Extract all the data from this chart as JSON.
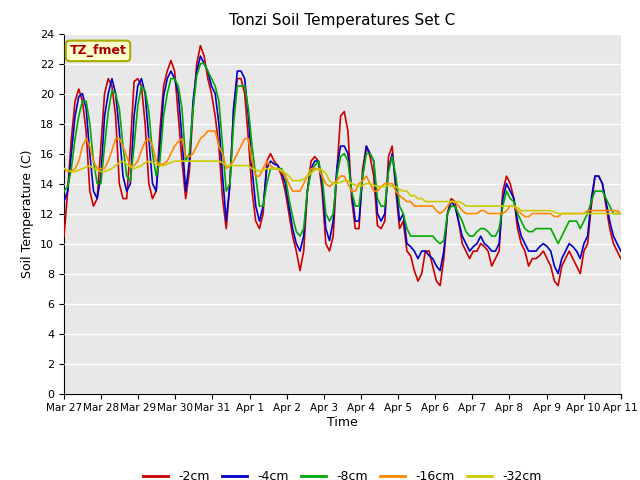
{
  "title": "Tonzi Soil Temperatures Set C",
  "xlabel": "Time",
  "ylabel": "Soil Temperature (C)",
  "ylim": [
    0,
    24
  ],
  "yticks": [
    0,
    2,
    4,
    6,
    8,
    10,
    12,
    14,
    16,
    18,
    20,
    22,
    24
  ],
  "xtick_labels": [
    "Mar 27",
    "Mar 28",
    "Mar 29",
    "Mar 30",
    "Mar 31",
    "Apr 1",
    "Apr 2",
    "Apr 3",
    "Apr 4",
    "Apr 5",
    "Apr 6",
    "Apr 7",
    "Apr 8",
    "Apr 9",
    "Apr 10",
    "Apr 11"
  ],
  "annotation": "TZ_fmet",
  "annotation_color": "#aa0000",
  "annotation_bg": "#ffffcc",
  "annotation_edge": "#aaaa00",
  "bg_color": "#e8e8e8",
  "legend_entries": [
    "-2cm",
    "-4cm",
    "-8cm",
    "-16cm",
    "-32cm"
  ],
  "line_colors": [
    "#cc0000",
    "#0000cc",
    "#00aa00",
    "#ff8800",
    "#cccc00"
  ],
  "line_width": 1.2,
  "data_2cm": [
    10.5,
    13.5,
    17.0,
    19.5,
    20.3,
    19.5,
    17.5,
    13.5,
    12.5,
    13.0,
    16.5,
    20.0,
    21.0,
    20.5,
    18.5,
    14.0,
    13.0,
    13.0,
    16.5,
    20.8,
    21.0,
    20.5,
    18.0,
    14.0,
    13.0,
    13.5,
    17.5,
    20.5,
    21.5,
    22.2,
    21.5,
    18.5,
    15.5,
    13.0,
    14.8,
    19.0,
    22.0,
    23.2,
    22.5,
    21.0,
    20.0,
    18.5,
    16.5,
    13.0,
    11.0,
    14.0,
    19.0,
    21.0,
    21.0,
    20.0,
    17.0,
    13.5,
    11.5,
    11.0,
    12.0,
    15.5,
    16.0,
    15.5,
    15.2,
    14.5,
    13.5,
    12.0,
    10.5,
    9.5,
    8.2,
    9.5,
    13.5,
    15.5,
    15.8,
    15.5,
    13.5,
    10.0,
    9.5,
    10.5,
    14.8,
    18.5,
    18.8,
    17.5,
    13.0,
    11.0,
    11.0,
    15.0,
    16.5,
    15.8,
    14.5,
    11.2,
    11.0,
    11.5,
    15.8,
    16.5,
    13.5,
    11.0,
    11.5,
    9.5,
    9.2,
    8.2,
    7.5,
    8.0,
    9.5,
    9.5,
    8.5,
    7.5,
    7.2,
    9.0,
    12.0,
    13.0,
    12.8,
    11.5,
    10.0,
    9.5,
    9.0,
    9.5,
    9.5,
    10.0,
    9.8,
    9.5,
    8.5,
    9.0,
    9.5,
    13.5,
    14.5,
    14.0,
    13.0,
    11.0,
    10.0,
    9.5,
    8.5,
    9.0,
    9.0,
    9.2,
    9.5,
    9.0,
    8.5,
    7.5,
    7.2,
    8.5,
    9.0,
    9.5,
    9.0,
    8.5,
    8.0,
    9.5,
    10.0,
    12.5,
    14.5,
    14.5,
    14.0,
    12.5,
    11.0,
    10.0,
    9.5,
    9.0
  ],
  "data_4cm": [
    12.8,
    13.5,
    16.0,
    18.5,
    19.8,
    20.0,
    19.0,
    16.0,
    13.5,
    13.0,
    14.5,
    18.5,
    20.0,
    21.0,
    20.0,
    17.5,
    14.5,
    13.5,
    14.0,
    18.5,
    20.5,
    21.0,
    20.0,
    17.0,
    14.0,
    13.5,
    16.5,
    19.8,
    21.0,
    21.5,
    21.0,
    20.0,
    17.0,
    13.5,
    15.5,
    19.5,
    21.5,
    22.5,
    22.0,
    21.5,
    20.5,
    20.0,
    18.0,
    14.5,
    11.5,
    14.0,
    19.0,
    21.5,
    21.5,
    21.0,
    18.5,
    15.0,
    12.5,
    11.5,
    12.5,
    15.0,
    15.5,
    15.3,
    15.2,
    14.8,
    14.0,
    12.5,
    11.0,
    10.0,
    9.5,
    10.5,
    13.5,
    15.0,
    15.5,
    15.5,
    14.0,
    11.0,
    10.2,
    11.5,
    15.0,
    16.5,
    16.5,
    16.0,
    13.5,
    11.5,
    11.5,
    14.5,
    16.5,
    16.0,
    15.5,
    12.0,
    11.5,
    12.0,
    15.0,
    16.0,
    14.0,
    11.5,
    12.0,
    10.0,
    9.8,
    9.5,
    9.0,
    9.5,
    9.5,
    9.2,
    9.0,
    8.5,
    8.2,
    9.5,
    12.0,
    12.8,
    12.5,
    11.5,
    10.5,
    10.0,
    9.5,
    9.8,
    10.0,
    10.5,
    10.0,
    9.8,
    9.5,
    9.5,
    10.0,
    13.0,
    14.0,
    13.5,
    13.0,
    11.5,
    10.5,
    10.0,
    9.5,
    9.5,
    9.5,
    9.8,
    10.0,
    9.8,
    9.5,
    8.5,
    8.0,
    9.0,
    9.5,
    10.0,
    9.8,
    9.5,
    9.0,
    10.0,
    10.5,
    13.0,
    14.5,
    14.5,
    14.0,
    12.8,
    11.5,
    10.5,
    10.0,
    9.5
  ],
  "data_8cm": [
    13.5,
    13.8,
    15.0,
    17.0,
    18.5,
    19.5,
    19.5,
    18.0,
    15.5,
    14.0,
    14.0,
    16.5,
    18.8,
    20.2,
    20.0,
    19.0,
    16.5,
    14.5,
    14.2,
    16.5,
    19.2,
    20.5,
    20.2,
    18.8,
    16.0,
    14.5,
    15.5,
    18.5,
    20.0,
    21.0,
    21.0,
    20.5,
    19.0,
    15.5,
    16.0,
    19.0,
    21.2,
    22.0,
    22.0,
    21.5,
    21.0,
    20.5,
    19.5,
    16.5,
    13.5,
    14.0,
    18.0,
    20.5,
    20.5,
    20.5,
    19.0,
    16.5,
    14.5,
    12.5,
    12.5,
    14.0,
    15.0,
    15.0,
    15.0,
    15.0,
    14.5,
    13.0,
    11.8,
    10.8,
    10.5,
    11.0,
    13.5,
    14.8,
    15.2,
    15.5,
    14.5,
    12.0,
    11.5,
    12.0,
    14.5,
    15.8,
    16.0,
    15.5,
    13.5,
    12.5,
    12.5,
    14.5,
    16.0,
    16.0,
    15.5,
    13.0,
    12.5,
    12.5,
    14.8,
    15.8,
    14.5,
    12.5,
    12.0,
    11.0,
    10.5,
    10.5,
    10.5,
    10.5,
    10.5,
    10.5,
    10.5,
    10.2,
    10.0,
    10.2,
    12.0,
    12.5,
    12.5,
    12.0,
    11.5,
    10.8,
    10.5,
    10.5,
    10.8,
    11.0,
    11.0,
    10.8,
    10.5,
    10.5,
    11.0,
    12.5,
    13.5,
    13.0,
    12.8,
    12.0,
    11.5,
    11.0,
    10.8,
    10.8,
    11.0,
    11.0,
    11.0,
    11.0,
    11.0,
    10.5,
    10.0,
    10.5,
    11.0,
    11.5,
    11.5,
    11.5,
    11.0,
    11.5,
    12.0,
    12.8,
    13.5,
    13.5,
    13.5,
    13.0,
    12.5,
    12.0,
    12.0,
    12.0
  ],
  "data_16cm": [
    15.0,
    14.8,
    14.8,
    15.0,
    15.5,
    16.5,
    17.0,
    16.5,
    15.5,
    15.0,
    15.0,
    15.0,
    15.5,
    16.2,
    17.0,
    17.0,
    16.5,
    15.8,
    15.2,
    15.2,
    15.5,
    16.2,
    16.8,
    17.0,
    16.5,
    15.5,
    15.3,
    15.3,
    15.5,
    16.0,
    16.5,
    16.8,
    17.0,
    15.8,
    15.8,
    16.0,
    16.5,
    17.0,
    17.2,
    17.5,
    17.5,
    17.5,
    16.5,
    16.0,
    15.0,
    15.2,
    15.5,
    16.0,
    16.5,
    17.0,
    17.0,
    15.5,
    14.5,
    14.5,
    15.0,
    15.5,
    15.2,
    15.0,
    15.0,
    14.8,
    14.5,
    14.0,
    13.5,
    13.5,
    13.5,
    14.0,
    14.5,
    15.0,
    15.0,
    15.0,
    14.5,
    14.0,
    13.8,
    14.0,
    14.2,
    14.5,
    14.5,
    14.0,
    13.5,
    13.5,
    14.0,
    14.2,
    14.5,
    14.0,
    13.5,
    13.5,
    13.8,
    14.0,
    14.0,
    14.0,
    13.5,
    13.2,
    13.0,
    12.8,
    12.8,
    12.5,
    12.5,
    12.5,
    12.5,
    12.5,
    12.5,
    12.2,
    12.0,
    12.2,
    12.5,
    12.8,
    12.8,
    12.5,
    12.2,
    12.0,
    12.0,
    12.0,
    12.0,
    12.2,
    12.2,
    12.0,
    12.0,
    12.0,
    12.0,
    12.0,
    12.2,
    12.5,
    12.5,
    12.2,
    12.0,
    11.8,
    11.8,
    12.0,
    12.0,
    12.0,
    12.0,
    12.0,
    12.0,
    11.8,
    11.8,
    12.0,
    12.0,
    12.0,
    12.0,
    12.0,
    12.0,
    12.0,
    12.2,
    12.2,
    12.2,
    12.2,
    12.2,
    12.2,
    12.2,
    12.2,
    12.2,
    12.0
  ],
  "data_32cm": [
    15.0,
    14.9,
    14.8,
    14.8,
    14.9,
    15.0,
    15.1,
    15.2,
    15.0,
    14.9,
    14.8,
    14.8,
    14.9,
    15.0,
    15.2,
    15.4,
    15.5,
    15.3,
    15.1,
    15.0,
    15.1,
    15.2,
    15.4,
    15.5,
    15.4,
    15.3,
    15.2,
    15.2,
    15.3,
    15.4,
    15.5,
    15.5,
    15.5,
    15.5,
    15.5,
    15.5,
    15.5,
    15.5,
    15.5,
    15.5,
    15.5,
    15.5,
    15.5,
    15.4,
    15.2,
    15.2,
    15.2,
    15.2,
    15.2,
    15.2,
    15.2,
    15.0,
    14.9,
    14.8,
    14.9,
    15.0,
    15.0,
    15.0,
    15.0,
    14.9,
    14.7,
    14.5,
    14.2,
    14.2,
    14.2,
    14.3,
    14.5,
    14.7,
    14.9,
    15.0,
    14.9,
    14.7,
    14.2,
    14.0,
    14.0,
    14.1,
    14.2,
    14.2,
    14.0,
    13.9,
    13.8,
    13.9,
    14.0,
    14.0,
    13.9,
    13.8,
    13.8,
    13.8,
    13.9,
    13.8,
    13.8,
    13.6,
    13.5,
    13.5,
    13.2,
    13.2,
    13.0,
    13.0,
    12.8,
    12.8,
    12.8,
    12.8,
    12.8,
    12.8,
    12.8,
    12.8,
    12.8,
    12.8,
    12.7,
    12.5,
    12.5,
    12.5,
    12.5,
    12.5,
    12.5,
    12.5,
    12.5,
    12.5,
    12.5,
    12.5,
    12.5,
    12.5,
    12.5,
    12.4,
    12.2,
    12.2,
    12.2,
    12.2,
    12.2,
    12.2,
    12.2,
    12.2,
    12.2,
    12.1,
    12.0,
    12.0,
    12.0,
    12.0,
    12.0,
    12.0,
    12.0,
    12.0,
    12.0,
    12.0,
    12.0,
    12.0,
    12.0,
    12.0,
    12.0,
    12.0,
    12.0,
    12.0
  ]
}
